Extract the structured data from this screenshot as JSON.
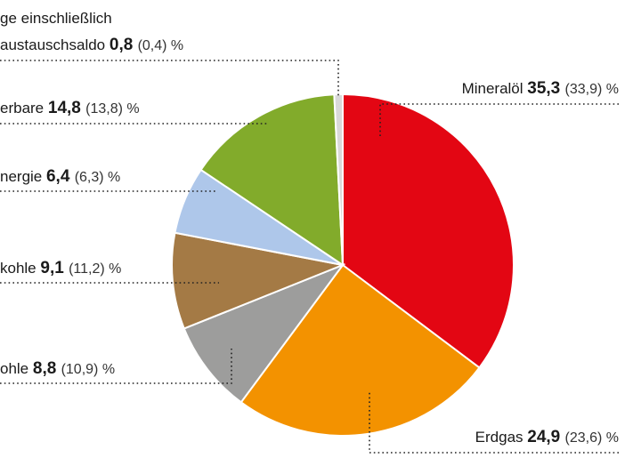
{
  "chart_data": {
    "type": "pie",
    "unit": "%",
    "slices": [
      {
        "label": "Mineralöl",
        "value": 35.3,
        "value_label": "35,3",
        "prev_label": "(33,9)",
        "color": "#e30613"
      },
      {
        "label": "Erdgas",
        "value": 24.9,
        "value_label": "24,9",
        "prev_label": "(23,6)",
        "color": "#f39200"
      },
      {
        "label": "ohle",
        "value": 8.8,
        "value_label": "8,8",
        "prev_label": "(10,9)",
        "color": "#9d9d9c"
      },
      {
        "label": "kohle",
        "value": 9.1,
        "value_label": "9,1",
        "prev_label": "(11,2)",
        "color": "#a47a45"
      },
      {
        "label": "nergie",
        "value": 6.4,
        "value_label": "6,4",
        "prev_label": "(6,3)",
        "color": "#aec7ea"
      },
      {
        "label": "erbare",
        "value": 14.8,
        "value_label": "14,8",
        "prev_label": "(13,8)",
        "color": "#82ab2b"
      },
      {
        "label": "austauschsaldo",
        "label_line1": "ge einschließlich",
        "value": 0.8,
        "value_label": "0,8",
        "prev_label": "(0,4)",
        "color": "#d9d9d9"
      }
    ]
  }
}
